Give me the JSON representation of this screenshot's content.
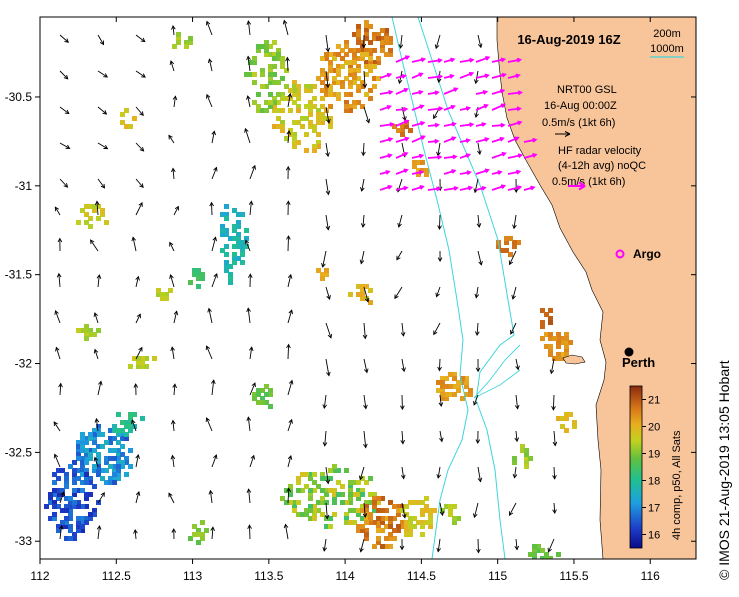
{
  "map": {
    "title": "16-Aug-2019 16Z",
    "credit": "© IMOS 21-Aug-2019 13:05 Hobart",
    "lon_ticks": [
      "112",
      "112.5",
      "113",
      "113.5",
      "114",
      "114.5",
      "115",
      "115.5",
      "116"
    ],
    "lat_ticks": [
      "-30.5",
      "-31",
      "-31.5",
      "-32",
      "-32.5",
      "-33"
    ],
    "lon_range": [
      112.0,
      116.3
    ],
    "lat_range": [
      -33.1,
      -30.05
    ],
    "depth_legend": {
      "contour1": "200m",
      "contour2": "1000m",
      "contour_color": "#3fd4de"
    },
    "gsl_legend": {
      "line1": "NRT00 GSL",
      "line2": "16-Aug 00:00Z",
      "line3": "0.5m/s (1kt 6h)"
    },
    "hf_legend": {
      "line1": "HF radar velocity",
      "line2": "(4-12h avg) noQC",
      "line3": "0.5m/s (1kt 6h)"
    },
    "argo_label": "Argo",
    "city_label": "Perth",
    "colorbar": {
      "ticks": [
        "21",
        "20",
        "19",
        "18",
        "17",
        "16"
      ],
      "range": [
        15.5,
        21.5
      ],
      "label": "4h comp, p50, All Sats"
    },
    "colors": {
      "land": "#f8c49a",
      "ocean": "#ffffff",
      "gsl_arrow": "#000000",
      "hf_arrow": "#ff00ff",
      "argo": "#ff00ff",
      "city": "#000000"
    }
  }
}
